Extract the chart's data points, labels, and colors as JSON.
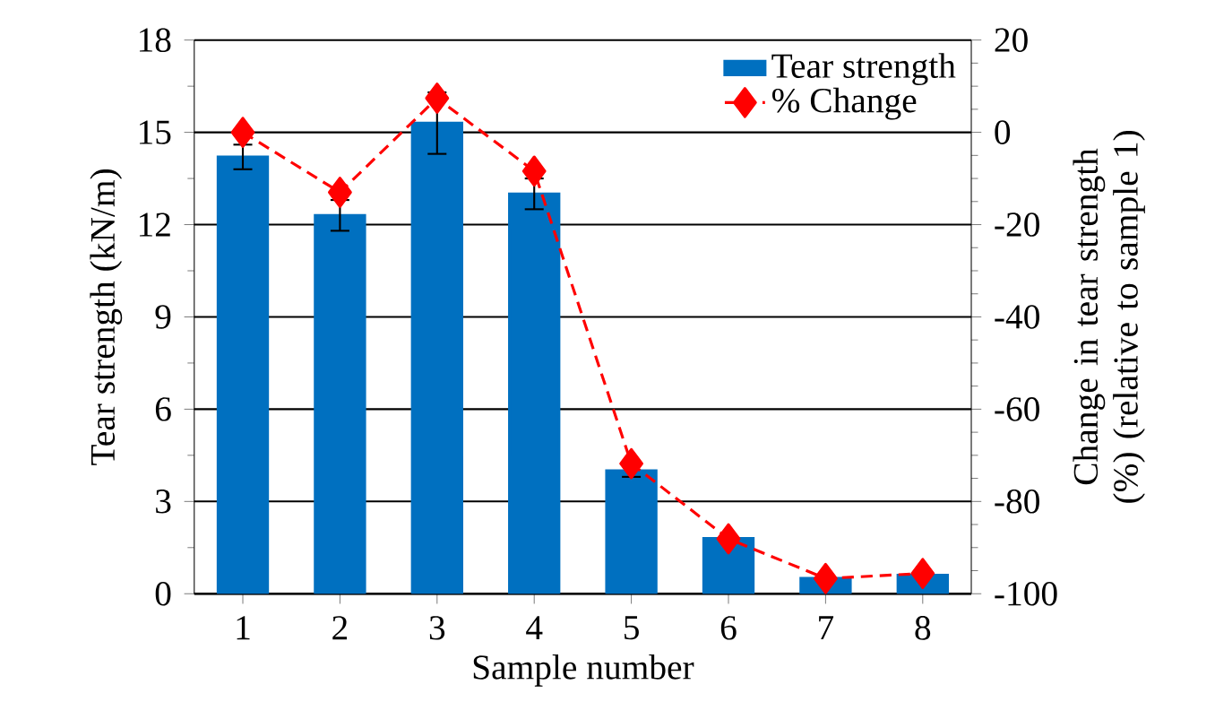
{
  "chart_data": {
    "type": "bar",
    "xlabel": "Sample number",
    "ylabel": "Tear strength (kN/m)",
    "y2label": "Change in tear strength (%) (relative to sample 1)",
    "categories": [
      "1",
      "2",
      "3",
      "4",
      "5",
      "6",
      "7",
      "8"
    ],
    "series": [
      {
        "name": "Tear strength",
        "color": "#0070c0",
        "values": [
          14.2,
          12.3,
          15.3,
          13.0,
          4.0,
          1.8,
          0.5,
          0.6
        ],
        "errors": [
          0.4,
          0.5,
          1.0,
          0.5,
          0.2,
          null,
          null,
          null
        ]
      },
      {
        "name": "% Change",
        "type": "line",
        "axis": "y2",
        "color": "#ff0000",
        "marker": "diamond",
        "line_style": "dashed",
        "values": [
          0,
          -13,
          7.4,
          -8.4,
          -71.8,
          -88.1,
          -96.7,
          -95.6
        ]
      }
    ],
    "ylim": [
      0,
      18
    ],
    "yticks": [
      0,
      3,
      6,
      9,
      12,
      15,
      18
    ],
    "y2lim": [
      -100,
      20
    ],
    "y2ticks": [
      -100,
      -80,
      -60,
      -40,
      -20,
      0,
      20
    ],
    "grid": "y",
    "legend": "top right"
  }
}
